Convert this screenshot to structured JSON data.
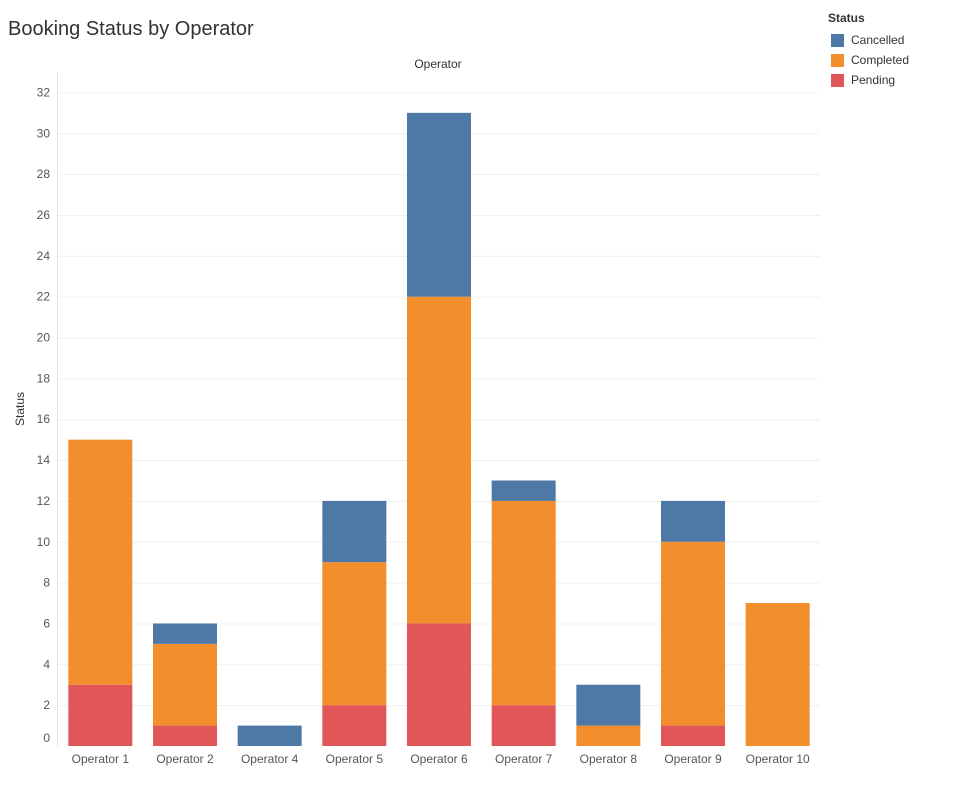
{
  "chart_data": {
    "type": "bar",
    "stacked": true,
    "title": "Booking Status by Operator",
    "column_header": "Operator",
    "xlabel": "",
    "ylabel": "Status",
    "ylim": [
      0,
      33
    ],
    "yticks": [
      0,
      2,
      4,
      6,
      8,
      10,
      12,
      14,
      16,
      18,
      20,
      22,
      24,
      26,
      28,
      30,
      32
    ],
    "categories": [
      "Operator 1",
      "Operator 2",
      "Operator 4",
      "Operator 5",
      "Operator 6",
      "Operator 7",
      "Operator 8",
      "Operator 9",
      "Operator 10"
    ],
    "series": [
      {
        "name": "Pending",
        "color": "#e15759",
        "values": [
          3,
          1,
          0,
          2,
          6,
          2,
          0,
          1,
          0
        ]
      },
      {
        "name": "Completed",
        "color": "#f28e2b",
        "values": [
          12,
          4,
          0,
          7,
          16,
          10,
          1,
          9,
          7
        ]
      },
      {
        "name": "Cancelled",
        "color": "#4e79a7",
        "values": [
          0,
          1,
          1,
          3,
          9,
          1,
          2,
          2,
          0
        ]
      }
    ],
    "legend": {
      "title": "Status",
      "position": "top-right",
      "items": [
        {
          "label": "Cancelled",
          "color": "#4e79a7"
        },
        {
          "label": "Completed",
          "color": "#f28e2b"
        },
        {
          "label": "Pending",
          "color": "#e15759"
        }
      ]
    }
  }
}
